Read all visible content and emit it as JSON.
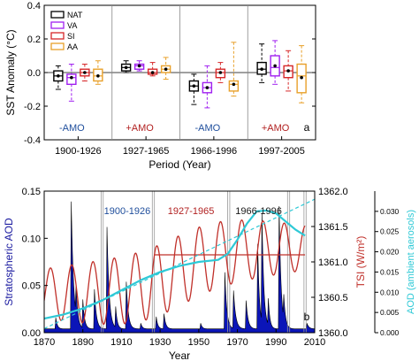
{
  "chart_data": [
    {
      "type": "box",
      "panel_label": "a",
      "ylabel": "SST Anomaly (°C)",
      "xlabel": "Period (Year)",
      "ylim": [
        -0.4,
        0.4
      ],
      "yticks": [
        "-0.4",
        "-0.2",
        "0.0",
        "0.2",
        "0.4"
      ],
      "ytick_values": [
        -0.4,
        -0.2,
        0.0,
        0.2,
        0.4
      ],
      "categories": [
        "1900-1926",
        "1927-1965",
        "1966-1996",
        "1997-2005"
      ],
      "phase_labels": [
        "-AMO",
        "+AMO",
        "-AMO",
        "+AMO"
      ],
      "phase_colors": [
        "#1f4e9c",
        "#b22222",
        "#1f4e9c",
        "#b22222"
      ],
      "zero_line": 0.0,
      "series": [
        {
          "name": "NAT",
          "color": "#000000",
          "boxes": [
            {
              "min": -0.1,
              "q1": -0.05,
              "median": -0.02,
              "mean": -0.02,
              "q3": 0.01,
              "max": 0.04
            },
            {
              "min": 0.0,
              "q1": 0.01,
              "median": 0.03,
              "mean": 0.03,
              "q3": 0.05,
              "max": 0.07
            },
            {
              "min": -0.19,
              "q1": -0.11,
              "median": -0.08,
              "mean": -0.08,
              "q3": -0.05,
              "max": -0.01
            },
            {
              "min": -0.06,
              "q1": -0.01,
              "median": 0.02,
              "mean": 0.02,
              "q3": 0.06,
              "max": 0.17
            }
          ]
        },
        {
          "name": "VA",
          "color": "#a020f0",
          "boxes": [
            {
              "min": -0.17,
              "q1": -0.07,
              "median": -0.03,
              "mean": -0.03,
              "q3": -0.01,
              "max": 0.05
            },
            {
              "min": 0.01,
              "q1": 0.02,
              "median": 0.04,
              "mean": 0.04,
              "q3": 0.05,
              "max": 0.07
            },
            {
              "min": -0.21,
              "q1": -0.12,
              "median": -0.09,
              "mean": -0.09,
              "q3": -0.06,
              "max": 0.04
            },
            {
              "min": -0.07,
              "q1": -0.02,
              "median": 0.03,
              "mean": 0.04,
              "q3": 0.1,
              "max": 0.19
            }
          ]
        },
        {
          "name": "SI",
          "color": "#d62728",
          "boxes": [
            {
              "min": -0.05,
              "q1": -0.02,
              "median": 0.0,
              "mean": 0.0,
              "q3": 0.02,
              "max": 0.05
            },
            {
              "min": -0.02,
              "q1": -0.01,
              "median": 0.0,
              "mean": 0.0,
              "q3": 0.02,
              "max": 0.06
            },
            {
              "min": -0.06,
              "q1": -0.03,
              "median": 0.0,
              "mean": 0.0,
              "q3": 0.02,
              "max": 0.06
            },
            {
              "min": -0.11,
              "q1": -0.03,
              "median": 0.01,
              "mean": 0.01,
              "q3": 0.04,
              "max": 0.13
            }
          ]
        },
        {
          "name": "AA",
          "color": "#e8a02a",
          "boxes": [
            {
              "min": -0.07,
              "q1": -0.05,
              "median": -0.02,
              "mean": -0.02,
              "q3": 0.02,
              "max": 0.07
            },
            {
              "min": -0.04,
              "q1": 0.0,
              "median": 0.02,
              "mean": 0.02,
              "q3": 0.04,
              "max": 0.09
            },
            {
              "min": -0.14,
              "q1": -0.11,
              "median": -0.07,
              "mean": -0.07,
              "q3": -0.05,
              "max": 0.18
            },
            {
              "min": -0.18,
              "q1": -0.12,
              "median": -0.02,
              "mean": -0.03,
              "q3": 0.05,
              "max": 0.16
            }
          ]
        }
      ]
    },
    {
      "type": "area+line",
      "panel_label": "b",
      "xlabel": "Year",
      "xlim": [
        1870,
        2010
      ],
      "xticks": [
        "1870",
        "1890",
        "1910",
        "1930",
        "1950",
        "1970",
        "1990",
        "2010"
      ],
      "xtick_values": [
        1870,
        1890,
        1910,
        1930,
        1950,
        1970,
        1990,
        2010
      ],
      "y_left": {
        "label": "Stratospheric AOD",
        "range": [
          0,
          0.15
        ],
        "ticks": [
          "0.00",
          "0.05",
          "0.10",
          "0.15"
        ],
        "tick_values": [
          0,
          0.05,
          0.1,
          0.15
        ],
        "color": "#1a1aa0"
      },
      "y_right1": {
        "label": "TSI (W/m²)",
        "range": [
          1360.0,
          1362.0
        ],
        "ticks": [
          "1360.0",
          "1360.5",
          "1361.0",
          "1361.5",
          "1362.0"
        ],
        "tick_values": [
          1360.0,
          1360.5,
          1361.0,
          1361.5,
          1362.0
        ],
        "color": "#c0302a"
      },
      "y_right2": {
        "label": "AOD (ambient aerosols)",
        "range": [
          0,
          0.035
        ],
        "ticks": [
          "0.000",
          "0.005",
          "0.010",
          "0.015",
          "0.020",
          "0.025",
          "0.030"
        ],
        "tick_values": [
          0,
          0.005,
          0.01,
          0.015,
          0.02,
          0.025,
          0.03
        ],
        "color": "#2ec9d6"
      },
      "period_labels": [
        {
          "text": "1900-1926",
          "color": "#1f4e9c",
          "x": 1913
        },
        {
          "text": "1927-1965",
          "color": "#b22222",
          "x": 1946
        },
        {
          "text": "1966-1996",
          "color": "#1a1a1a",
          "x": 1981
        }
      ],
      "period_boundaries": [
        1900,
        1926.5,
        1965.5,
        1996.5,
        2005
      ],
      "stratospheric_aod": {
        "background": 0.004,
        "eruptions": [
          {
            "year": 1876,
            "peak": 0.012,
            "width": 0.8
          },
          {
            "year": 1884,
            "peak": 0.135,
            "width": 1.2
          },
          {
            "year": 1886.5,
            "peak": 0.03,
            "width": 0.8
          },
          {
            "year": 1890,
            "peak": 0.03,
            "width": 0.9
          },
          {
            "year": 1896,
            "peak": 0.042,
            "width": 1.0
          },
          {
            "year": 1902.5,
            "peak": 0.108,
            "width": 1.1
          },
          {
            "year": 1907,
            "peak": 0.022,
            "width": 0.8
          },
          {
            "year": 1912.5,
            "peak": 0.05,
            "width": 1.0
          },
          {
            "year": 1920,
            "peak": 0.006,
            "width": 0.8
          },
          {
            "year": 1928,
            "peak": 0.013,
            "width": 0.8
          },
          {
            "year": 1932,
            "peak": 0.016,
            "width": 0.9
          },
          {
            "year": 1951,
            "peak": 0.006,
            "width": 0.8
          },
          {
            "year": 1963.5,
            "peak": 0.06,
            "width": 1.0
          },
          {
            "year": 1968,
            "peak": 0.04,
            "width": 1.1
          },
          {
            "year": 1974.5,
            "peak": 0.03,
            "width": 1.0
          },
          {
            "year": 1980.5,
            "peak": 0.09,
            "width": 0.9
          },
          {
            "year": 1982.7,
            "peak": 0.115,
            "width": 1.0
          },
          {
            "year": 1986,
            "peak": 0.028,
            "width": 0.8
          },
          {
            "year": 1991.6,
            "peak": 0.13,
            "width": 1.0
          },
          {
            "year": 1994,
            "peak": 0.025,
            "width": 0.9
          },
          {
            "year": 2006,
            "peak": 0.006,
            "width": 1.0
          }
        ]
      },
      "tsi_segments": [
        {
          "x": [
            1927,
            2005
          ],
          "y": [
            1361.1,
            1361.1
          ]
        }
      ],
      "ambient_aod": {
        "x": [
          1870,
          1880,
          1890,
          1900,
          1910,
          1920,
          1930,
          1940,
          1950,
          1960,
          1965,
          1970,
          1975,
          1980,
          1985,
          1990,
          1995,
          2000,
          2005
        ],
        "y": [
          0.0035,
          0.0045,
          0.006,
          0.008,
          0.0105,
          0.013,
          0.015,
          0.0165,
          0.0175,
          0.018,
          0.0195,
          0.023,
          0.027,
          0.03,
          0.0302,
          0.0295,
          0.0275,
          0.0255,
          0.024
        ]
      },
      "ambient_aod_trend": {
        "x": [
          1870,
          2010
        ],
        "y": [
          0.001,
          0.033
        ]
      }
    }
  ],
  "ui": {
    "panel_a_label": "a",
    "panel_b_label": "b"
  }
}
